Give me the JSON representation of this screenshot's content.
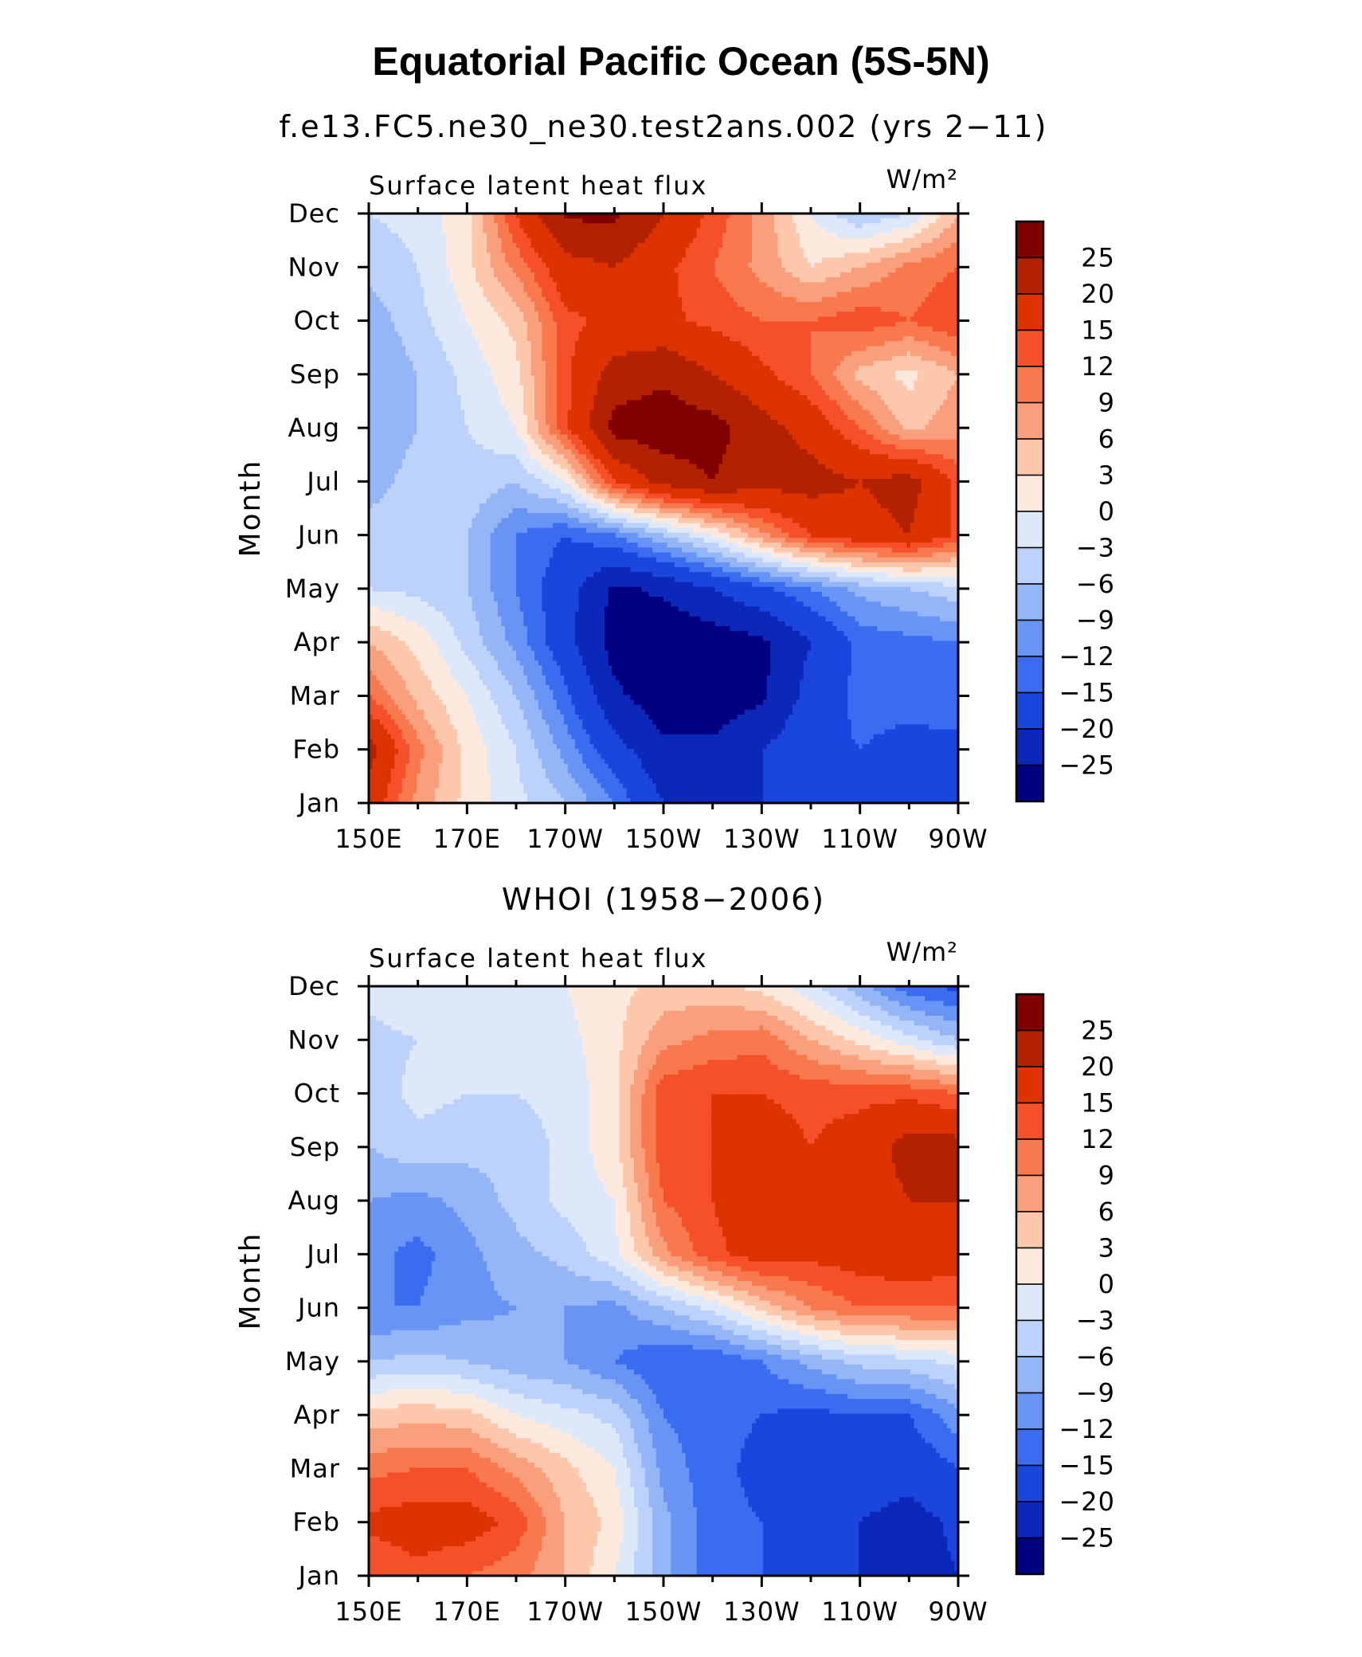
{
  "figure": {
    "title": "Equatorial Pacific Ocean (5S-5N)"
  },
  "colorbar": {
    "levels": [
      25,
      20,
      15,
      12,
      9,
      6,
      3,
      0,
      -3,
      -6,
      -9,
      -12,
      -15,
      -20,
      -25
    ],
    "labels": [
      "25",
      "20",
      "15",
      "12",
      "9",
      "6",
      "3",
      "0",
      "−3",
      "−6",
      "−9",
      "−12",
      "−15",
      "−20",
      "−25"
    ],
    "colors": [
      "#800000",
      "#b22200",
      "#dd3300",
      "#f5502a",
      "#f8794e",
      "#fa9f7c",
      "#fcc7aa",
      "#fde9dd",
      "#dde9fb",
      "#bcd2fa",
      "#94b5f6",
      "#6894f5",
      "#3a6cf0",
      "#1a46dd",
      "#0c28b8",
      "#000080"
    ]
  },
  "chart_data": [
    {
      "type": "heatmap",
      "title": "f.e13.FC5.ne30_ne30.test2ans.002 (yrs 2−11)",
      "subtitle": "Surface latent heat flux",
      "units": "W/m²",
      "xlabel": "",
      "ylabel": "Month",
      "x_ticks": [
        "150E",
        "170E",
        "170W",
        "150W",
        "130W",
        "110W",
        "90W"
      ],
      "x_tick_lons": [
        150,
        170,
        190,
        210,
        230,
        250,
        270
      ],
      "xlim": [
        150,
        270
      ],
      "y_ticks": [
        "Jan",
        "Feb",
        "Mar",
        "Apr",
        "May",
        "Jun",
        "Jul",
        "Aug",
        "Sep",
        "Oct",
        "Nov",
        "Dec"
      ],
      "x_lon": [
        150,
        160,
        170,
        180,
        190,
        200,
        210,
        220,
        230,
        240,
        250,
        260,
        270
      ],
      "z": [
        [
          18,
          8,
          2,
          -2,
          -6,
          -12,
          -20,
          -24,
          -20,
          -16,
          -15,
          -16,
          -17
        ],
        [
          22,
          10,
          2,
          -3,
          -10,
          -18,
          -24,
          -24,
          -20,
          -16,
          -15,
          -16,
          -16
        ],
        [
          12,
          5,
          0,
          -6,
          -14,
          -24,
          -28,
          -28,
          -26,
          -18,
          -14,
          -14,
          -13
        ],
        [
          6,
          2,
          -4,
          -10,
          -18,
          -27,
          -29,
          -28,
          -26,
          -20,
          -14,
          -13,
          -12
        ],
        [
          -3,
          -4,
          -6,
          -12,
          -18,
          -26,
          -24,
          -20,
          -16,
          -12,
          -8,
          -6,
          -4
        ],
        [
          -5,
          -5,
          -6,
          -12,
          -15,
          -12,
          -6,
          0,
          8,
          15,
          18,
          20,
          14
        ],
        [
          -7,
          -5,
          -4,
          -6,
          0,
          15,
          22,
          25,
          22,
          22,
          20,
          22,
          14
        ],
        [
          -8,
          -6,
          -3,
          0,
          14,
          27,
          28,
          27,
          22,
          18,
          12,
          5,
          8
        ],
        [
          -9,
          -6,
          -2,
          2,
          14,
          22,
          24,
          20,
          16,
          12,
          5,
          2,
          6
        ],
        [
          -8,
          -4,
          0,
          4,
          14,
          16,
          16,
          14,
          12,
          12,
          14,
          12,
          15
        ],
        [
          -5,
          -3,
          2,
          10,
          18,
          20,
          16,
          12,
          8,
          3,
          6,
          10,
          12
        ],
        [
          -3,
          -2,
          2,
          15,
          26,
          26,
          20,
          14,
          8,
          0,
          -6,
          -3,
          6
        ]
      ]
    },
    {
      "type": "heatmap",
      "title": "WHOI (1958−2006)",
      "subtitle": "Surface latent heat flux",
      "units": "W/m²",
      "xlabel": "",
      "ylabel": "Month",
      "x_ticks": [
        "150E",
        "170E",
        "170W",
        "150W",
        "130W",
        "110W",
        "90W"
      ],
      "x_tick_lons": [
        150,
        170,
        190,
        210,
        230,
        250,
        270
      ],
      "xlim": [
        150,
        270
      ],
      "y_ticks": [
        "Jan",
        "Feb",
        "Mar",
        "Apr",
        "May",
        "Jun",
        "Jul",
        "Aug",
        "Sep",
        "Oct",
        "Nov",
        "Dec"
      ],
      "x_lon": [
        150,
        160,
        170,
        180,
        190,
        200,
        210,
        220,
        230,
        240,
        250,
        260,
        270
      ],
      "z": [
        [
          12,
          14,
          12,
          10,
          6,
          0,
          -8,
          -14,
          -15,
          -17,
          -20,
          -22,
          -20
        ],
        [
          16,
          17,
          17,
          14,
          6,
          2,
          -8,
          -14,
          -15,
          -16,
          -20,
          -22,
          -19
        ],
        [
          11,
          12,
          12,
          8,
          4,
          0,
          -10,
          -14,
          -16,
          -17,
          -17,
          -18,
          -15
        ],
        [
          4,
          5,
          4,
          0,
          -2,
          -4,
          -12,
          -14,
          -15,
          -16,
          -15,
          -15,
          -10
        ],
        [
          -6,
          -5,
          -6,
          -8,
          -9,
          -12,
          -15,
          -15,
          -12,
          -8,
          -5,
          -4,
          -2
        ],
        [
          -12,
          -12,
          -10,
          -9,
          -9,
          -10,
          -6,
          -2,
          4,
          9,
          12,
          12,
          12
        ],
        [
          -11,
          -13,
          -10,
          -7,
          -5,
          -1,
          8,
          14,
          17,
          16,
          17,
          18,
          17
        ],
        [
          -9,
          -10,
          -8,
          -5,
          -2,
          0,
          12,
          15,
          18,
          16,
          17,
          20,
          20
        ],
        [
          -6,
          -4,
          -5,
          -5,
          -2,
          2,
          14,
          15,
          17,
          15,
          17,
          22,
          22
        ],
        [
          -5,
          -2,
          -3,
          -3,
          -2,
          2,
          14,
          15,
          15,
          14,
          14,
          14,
          12
        ],
        [
          -4,
          -3,
          -3,
          -2,
          -1,
          2,
          8,
          10,
          11,
          6,
          2,
          -2,
          -6
        ],
        [
          -2,
          0,
          0,
          -1,
          0,
          2,
          4,
          4,
          2,
          -2,
          -8,
          -14,
          -16
        ]
      ]
    }
  ]
}
